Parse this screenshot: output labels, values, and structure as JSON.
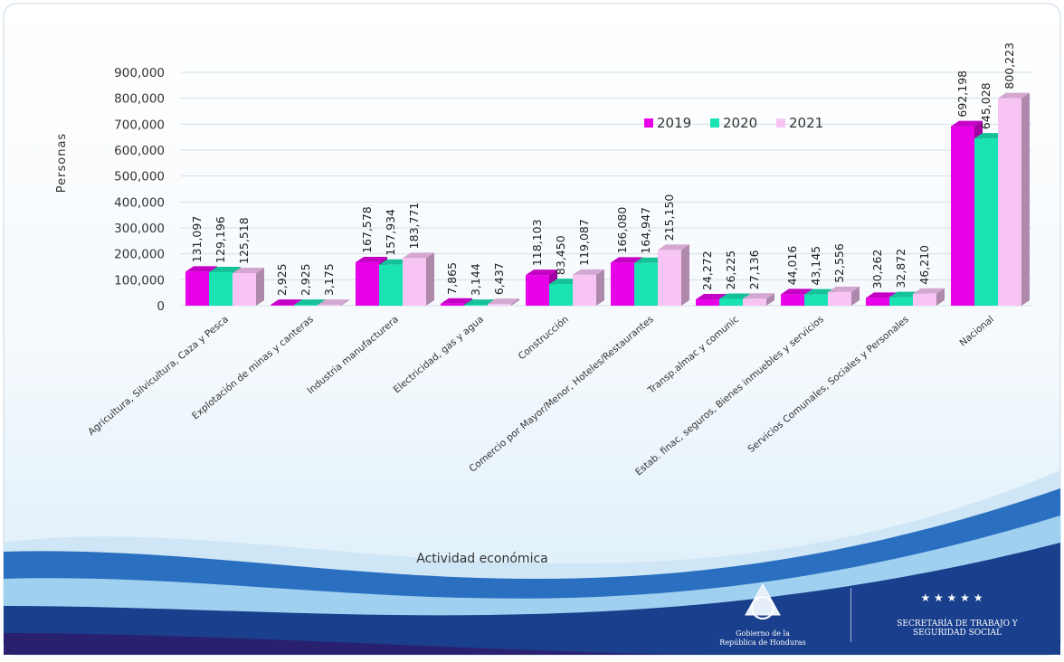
{
  "chart_data": {
    "type": "bar3d",
    "ylabel": "Personas",
    "xlabel": "Actividad económica",
    "categories": [
      "Agricultura, Silvicultura, Caza y Pesca",
      "Explotación de minas y canteras",
      "Industria manufacturera",
      "Electricidad, gas y agua",
      "Construcción",
      "Comercio por Mayor/Menor, Hoteles/Restaurantes",
      "Transp.almac y comunic",
      "Estab. finac, seguros, Bienes inmuebles y servicios",
      "Servicios Comunales, Sociales y Personales",
      "Nacional"
    ],
    "series": [
      {
        "name": "2019",
        "color": "#e800e8",
        "values": [
          131097,
          2925,
          167578,
          7865,
          118103,
          166080,
          24272,
          44016,
          30262,
          692198
        ],
        "value_labels": [
          "131,097",
          "2,925",
          "167,578",
          "7,865",
          "118,103",
          "166,080",
          "24,272",
          "44,016",
          "30,262",
          "692,198"
        ]
      },
      {
        "name": "2020",
        "color": "#19e3b3",
        "values": [
          129196,
          2925,
          157934,
          3144,
          83450,
          164947,
          26225,
          43145,
          32872,
          645028
        ],
        "value_labels": [
          "129,196",
          "2,925",
          "157,934",
          "3,144",
          "83,450",
          "164,947",
          "26,225",
          "43,145",
          "32,872",
          "645,028"
        ]
      },
      {
        "name": "2021",
        "color": "#f8c4f4",
        "values": [
          125518,
          3175,
          183771,
          6437,
          119087,
          215150,
          27136,
          52556,
          46210,
          800223
        ],
        "value_labels": [
          "125,518",
          "3,175",
          "183,771",
          "6,437",
          "119,087",
          "215,150",
          "27,136",
          "52,556",
          "46,210",
          "800,223"
        ]
      }
    ],
    "ylim": [
      0,
      900000
    ],
    "yticks": [
      0,
      {
        "value": 100000,
        "label": "100,000"
      },
      {
        "value": 200000,
        "label": "200,000"
      },
      {
        "value": 300000,
        "label": "300,000"
      },
      {
        "value": 400000,
        "label": "400,000"
      },
      {
        "value": 500000,
        "label": "500,000"
      },
      {
        "value": 600000,
        "label": "600,000"
      },
      {
        "value": 700000,
        "label": "700,000"
      },
      {
        "value": 800000,
        "label": "800,000"
      },
      {
        "value": 900000,
        "label": "900,000"
      }
    ],
    "grid": true,
    "legend": "upper center"
  },
  "footer": {
    "government": [
      "Gobierno de la",
      "República de Honduras"
    ],
    "ministry": [
      "Secretaría de Trabajo y",
      "Seguridad Social"
    ]
  }
}
